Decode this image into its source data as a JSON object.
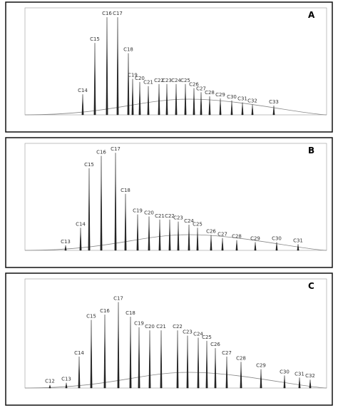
{
  "chart_data": [
    {
      "type": "stem",
      "panel": "A",
      "color": "#222222",
      "xlim": [
        3.5,
        45.8
      ],
      "ylim": [
        0,
        100
      ],
      "categories": [
        "C14",
        "C15",
        "C16",
        "C17",
        "C18",
        "C19",
        "C20",
        "C21",
        "C22",
        "C23",
        "C24",
        "C25",
        "C26",
        "C27",
        "C28",
        "C29",
        "C30",
        "C31",
        "C32",
        "C33"
      ],
      "x": [
        11.6,
        13.3,
        15.0,
        16.5,
        18.0,
        18.6,
        19.6,
        20.8,
        22.3,
        23.4,
        24.7,
        26.0,
        27.2,
        28.2,
        29.4,
        30.9,
        32.5,
        34.0,
        35.4,
        38.4
      ],
      "values": [
        20,
        70,
        95,
        95,
        60,
        35,
        32,
        28,
        30,
        30,
        30,
        30,
        26,
        22,
        18,
        16,
        14,
        12,
        10,
        9
      ]
    },
    {
      "type": "stem",
      "panel": "B",
      "color": "#222222",
      "xlim": [
        3.5,
        45.8
      ],
      "ylim": [
        0,
        100
      ],
      "categories": [
        "C13",
        "C14",
        "C15",
        "C16",
        "C17",
        "C18",
        "C19",
        "C20",
        "C21",
        "C22",
        "C23",
        "C24",
        "C25",
        "C26",
        "C27",
        "C28",
        "C29",
        "C30",
        "C31"
      ],
      "x": [
        9.2,
        11.3,
        12.5,
        14.2,
        16.2,
        17.6,
        19.3,
        20.9,
        22.4,
        23.8,
        25.0,
        26.5,
        27.7,
        29.6,
        31.2,
        33.2,
        35.8,
        38.8,
        41.8
      ],
      "values": [
        5,
        22,
        80,
        92,
        95,
        55,
        35,
        33,
        30,
        30,
        28,
        25,
        22,
        15,
        12,
        10,
        8,
        8,
        6
      ]
    },
    {
      "type": "stem",
      "panel": "C",
      "color": "#222222",
      "xlim": [
        3.5,
        45.8
      ],
      "ylim": [
        0,
        100
      ],
      "categories": [
        "C12",
        "C13",
        "C14",
        "C15",
        "C16",
        "C17",
        "C18",
        "C19",
        "C20",
        "C21",
        "C22",
        "C23",
        "C24",
        "C25",
        "C26",
        "C27",
        "C28",
        "C29",
        "C30",
        "C31",
        "C32"
      ],
      "x": [
        7.0,
        9.3,
        11.1,
        12.8,
        14.7,
        16.6,
        18.3,
        19.5,
        21.0,
        22.6,
        24.9,
        26.3,
        27.8,
        29.0,
        30.2,
        31.8,
        33.8,
        36.6,
        39.9,
        42.0,
        43.5
      ],
      "values": [
        3,
        5,
        30,
        65,
        70,
        82,
        68,
        58,
        55,
        55,
        55,
        50,
        48,
        45,
        38,
        30,
        25,
        18,
        12,
        10,
        8
      ]
    }
  ]
}
